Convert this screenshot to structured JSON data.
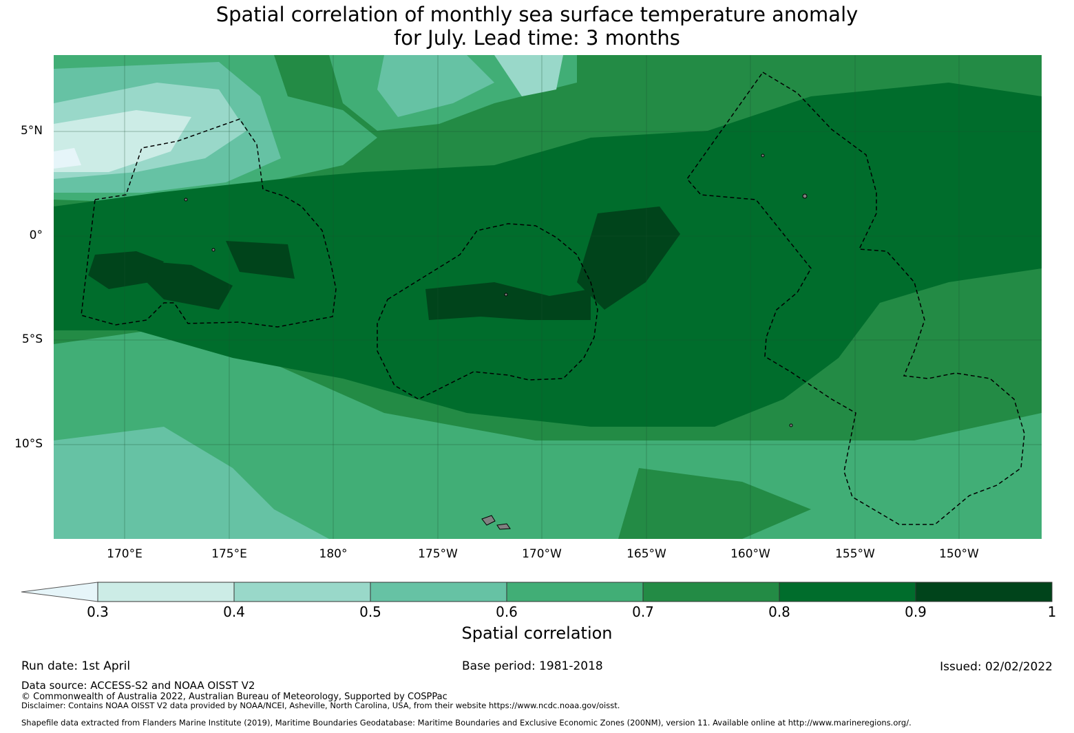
{
  "title_line1": "Spatial correlation of monthly sea surface temperature anomaly",
  "title_line2": "for July. Lead time: 3 months",
  "map": {
    "lon_range": [
      166.7,
      213.8
    ],
    "lat_range": [
      -14.4,
      8.7
    ],
    "lat_ticks": [
      {
        "value": 5,
        "label": "5°N"
      },
      {
        "value": 0,
        "label": "0°"
      },
      {
        "value": -5,
        "label": "5°S"
      },
      {
        "value": -10,
        "label": "10°S"
      }
    ],
    "lon_ticks": [
      {
        "value": 170,
        "label": "170°E"
      },
      {
        "value": 175,
        "label": "175°E"
      },
      {
        "value": 180,
        "label": "180°"
      },
      {
        "value": 185,
        "label": "175°W"
      },
      {
        "value": 190,
        "label": "170°W"
      },
      {
        "value": 195,
        "label": "165°W"
      },
      {
        "value": 200,
        "label": "160°W"
      },
      {
        "value": 205,
        "label": "155°W"
      },
      {
        "value": 210,
        "label": "150°W"
      }
    ],
    "grid": true,
    "boundaries": "dashed EEZ outlines",
    "land_color": "#808080"
  },
  "colorbar": {
    "label": "Spatial correlation",
    "extend": "min",
    "tick_labels": [
      "0.3",
      "0.4",
      "0.5",
      "0.6",
      "0.7",
      "0.8",
      "0.9",
      "1"
    ],
    "colors": [
      "#e6f5f9",
      "#ccece6",
      "#99d8c9",
      "#66c2a4",
      "#41ae76",
      "#238b45",
      "#006d2c",
      "#00441b"
    ]
  },
  "footer": {
    "run_date": "Run date: 1st April",
    "base_period": "Base period: 1981-2018",
    "issued": "Issued: 02/02/2022",
    "data_source": "Data source: ACCESS-S2 and NOAA OISST V2",
    "copyright": "© Commonwealth of Australia 2022, Australian Bureau of Meteorology, Supported by COSPPac",
    "disclaimer": "Disclaimer: Contains NOAA OISST V2 data provided by NOAA/NCEI, Asheville, North Carolina, USA, from their website https://www.ncdc.noaa.gov/oisst.",
    "shapefile": "Shapefile data extracted from Flanders Marine Institute (2019), Maritime Boundaries Geodatabase: Maritime Boundaries and Exclusive Economic Zones (200NM), version 11. Available online at http://www.marineregions.org/."
  }
}
